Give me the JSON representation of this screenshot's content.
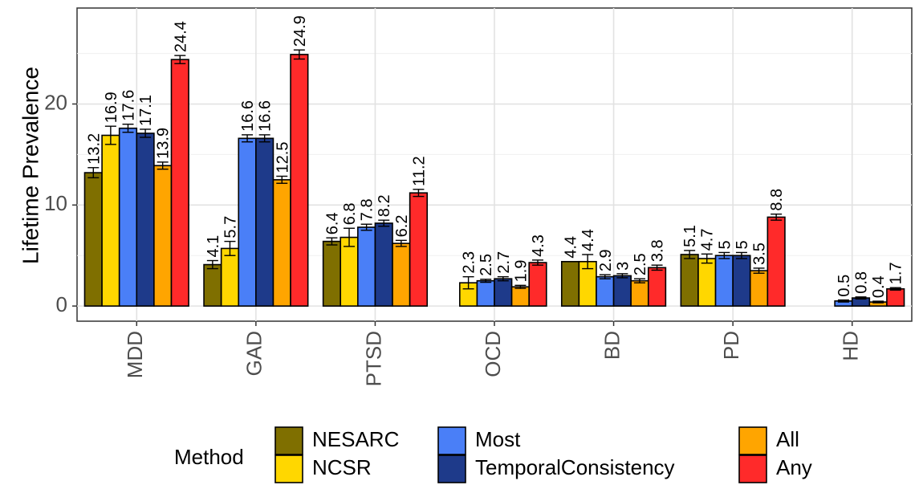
{
  "chart_data": {
    "type": "bar",
    "ylabel": "Lifetime Prevalence",
    "xlabel": "",
    "ylim": [
      -1.5,
      29.5
    ],
    "yticks": [
      0,
      10,
      20
    ],
    "grid": true,
    "categories": [
      "MDD",
      "GAD",
      "PTSD",
      "OCD",
      "BD",
      "PD",
      "HD"
    ],
    "legend": {
      "title": "Method",
      "placement": "bottom"
    },
    "series": [
      {
        "name": "NESARC",
        "color": "#7f6f00",
        "values": [
          13.2,
          4.1,
          6.4,
          null,
          4.4,
          5.1,
          null
        ],
        "errors": [
          0.5,
          0.4,
          0.35,
          null,
          0.0,
          0.4,
          null
        ],
        "labels": [
          "13.2",
          "4.1",
          "6.4",
          "",
          "4.4",
          "5.1",
          ""
        ]
      },
      {
        "name": "NCSR",
        "color": "#ffd700",
        "values": [
          16.9,
          5.7,
          6.8,
          2.3,
          4.4,
          4.7,
          null
        ],
        "errors": [
          0.9,
          0.7,
          0.9,
          0.6,
          0.7,
          0.45,
          null
        ],
        "labels": [
          "16.9",
          "5.7",
          "6.8",
          "2.3",
          "4.4",
          "4.7",
          ""
        ]
      },
      {
        "name": "Most",
        "color": "#4a7ff7",
        "values": [
          17.6,
          16.6,
          7.8,
          2.5,
          2.9,
          5.0,
          0.5
        ],
        "errors": [
          0.4,
          0.35,
          0.3,
          0.15,
          0.2,
          0.3,
          0.1
        ],
        "labels": [
          "17.6",
          "16.6",
          "7.8",
          "2.5",
          "2.9",
          "5",
          "0.5"
        ]
      },
      {
        "name": "TemporalConsistency",
        "color": "#1e3a8a",
        "values": [
          17.1,
          16.6,
          8.2,
          2.7,
          3.0,
          5.0,
          0.8
        ],
        "errors": [
          0.4,
          0.35,
          0.3,
          0.2,
          0.2,
          0.3,
          0.1
        ],
        "labels": [
          "17.1",
          "16.6",
          "8.2",
          "2.7",
          "3",
          "5",
          "0.8"
        ]
      },
      {
        "name": "All",
        "color": "#ffa500",
        "values": [
          13.9,
          12.5,
          6.2,
          1.9,
          2.5,
          3.5,
          0.4
        ],
        "errors": [
          0.35,
          0.35,
          0.3,
          0.15,
          0.2,
          0.25,
          0.08
        ],
        "labels": [
          "13.9",
          "12.5",
          "6.2",
          "1.9",
          "2.5",
          "3.5",
          "0.4"
        ]
      },
      {
        "name": "Any",
        "color": "#ff2a2a",
        "values": [
          24.4,
          24.9,
          11.2,
          4.3,
          3.8,
          8.8,
          1.7
        ],
        "errors": [
          0.4,
          0.45,
          0.35,
          0.25,
          0.25,
          0.3,
          0.12
        ],
        "labels": [
          "24.4",
          "24.9",
          "11.2",
          "4.3",
          "3.8",
          "8.8",
          "1.7"
        ]
      }
    ]
  }
}
